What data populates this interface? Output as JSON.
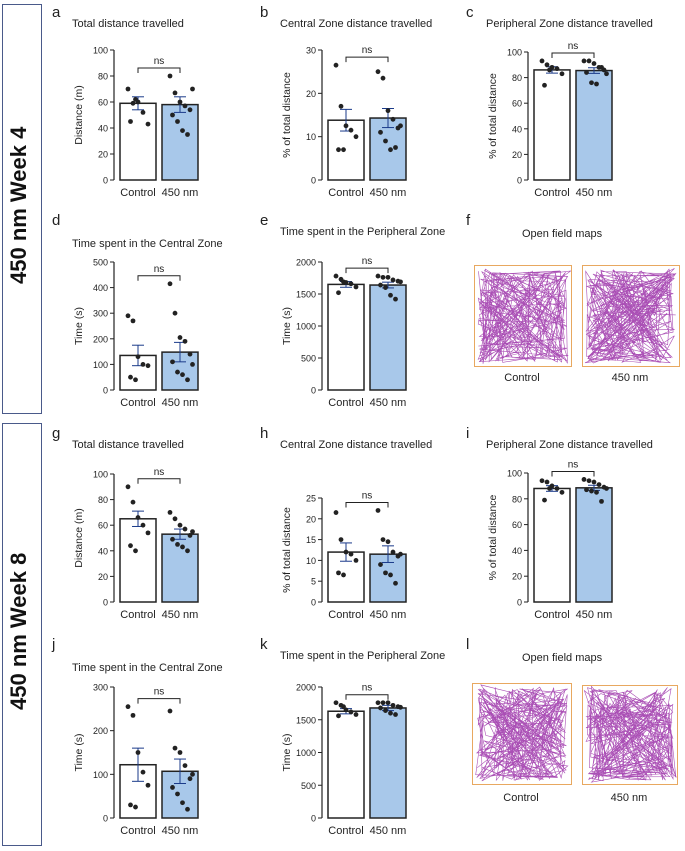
{
  "week_labels": [
    "450 nm Week 4",
    "450 nm Week 8"
  ],
  "colors": {
    "control_fill": "#ffffff",
    "treatment_fill": "#a8c8ea",
    "dot": "#222222",
    "error": "#1a3a8a",
    "track": "#9b30a8",
    "map_border": "#e8a860"
  },
  "maps": [
    {
      "letter": "f",
      "title": "Open field maps",
      "labels": [
        "Control",
        "450 nm"
      ]
    },
    {
      "letter": "l",
      "title": "Open field maps",
      "labels": [
        "Control",
        "450 nm"
      ]
    }
  ],
  "chart_data": [
    {
      "letter": "a",
      "type": "bar",
      "title": "Total distance travelled",
      "ylabel": "Distance (m)",
      "ylim": [
        0,
        100
      ],
      "ticks": [
        0,
        20,
        40,
        60,
        80,
        100
      ],
      "categories": [
        "Control",
        "450 nm"
      ],
      "means": [
        59,
        58
      ],
      "sem": [
        5,
        6
      ],
      "sig": "ns",
      "points": [
        [
          70,
          59,
          60,
          52,
          43,
          45,
          62
        ],
        [
          80,
          67,
          60,
          57,
          54,
          50,
          45,
          38,
          35,
          70
        ]
      ]
    },
    {
      "letter": "b",
      "type": "bar",
      "title": "Central Zone distance travelled",
      "ylabel": "% of total distance",
      "ylim": [
        0,
        30
      ],
      "ticks": [
        0,
        10,
        20,
        30
      ],
      "categories": [
        "Control",
        "450 nm"
      ],
      "means": [
        13.8,
        14.3
      ],
      "sem": [
        2.5,
        2.2
      ],
      "sig": "ns",
      "points": [
        [
          26.5,
          17,
          12.5,
          11.5,
          10,
          7,
          7
        ],
        [
          25,
          23.5,
          16,
          14,
          12,
          11,
          9,
          7,
          7.5,
          12.5
        ]
      ]
    },
    {
      "letter": "c",
      "type": "bar",
      "title": "Peripheral Zone distance travelled",
      "ylabel": "% of total distance",
      "ylim": [
        0,
        100
      ],
      "ticks": [
        0,
        20,
        40,
        60,
        80,
        100
      ],
      "categories": [
        "Control",
        "450 nm"
      ],
      "means": [
        86,
        85.5
      ],
      "sem": [
        2.5,
        2.2
      ],
      "sig": "ns",
      "points": [
        [
          93,
          90,
          88,
          87,
          83,
          74,
          86
        ],
        [
          93,
          93,
          91,
          88,
          86,
          84,
          76,
          75,
          88,
          83
        ]
      ]
    },
    {
      "letter": "d",
      "type": "bar",
      "title": "Time spent in the Central Zone",
      "ylabel": "Time (s)",
      "ylim": [
        0,
        500
      ],
      "ticks": [
        0,
        100,
        200,
        300,
        400,
        500
      ],
      "categories": [
        "Control",
        "450 nm"
      ],
      "means": [
        135,
        148
      ],
      "sem": [
        40,
        38
      ],
      "sig": "ns",
      "points": [
        [
          290,
          270,
          130,
          100,
          95,
          50,
          40
        ],
        [
          415,
          300,
          205,
          190,
          140,
          110,
          70,
          60,
          40,
          100
        ]
      ]
    },
    {
      "letter": "e",
      "type": "bar",
      "title": "Time spent in the Peripheral Zone",
      "ylabel": "Time (s)",
      "ylim": [
        0,
        2000
      ],
      "ticks": [
        0,
        500,
        1000,
        1500,
        2000
      ],
      "categories": [
        "Control",
        "450 nm"
      ],
      "means": [
        1650,
        1640
      ],
      "sem": [
        45,
        45
      ],
      "sig": "ns",
      "points": [
        [
          1780,
          1730,
          1680,
          1660,
          1610,
          1520,
          1690
        ],
        [
          1780,
          1760,
          1760,
          1720,
          1700,
          1640,
          1600,
          1480,
          1420,
          1690
        ]
      ]
    },
    {
      "letter": "g",
      "type": "bar",
      "title": "Total distance travelled",
      "ylabel": "Distance (m)",
      "ylim": [
        0,
        100
      ],
      "ticks": [
        0,
        20,
        40,
        60,
        80,
        100
      ],
      "categories": [
        "Control",
        "450 nm"
      ],
      "means": [
        65,
        53
      ],
      "sem": [
        6,
        4
      ],
      "sig": "ns",
      "points": [
        [
          90,
          78,
          66,
          60,
          54,
          44,
          40
        ],
        [
          70,
          65,
          60,
          57,
          52,
          49,
          45,
          43,
          40,
          55
        ]
      ]
    },
    {
      "letter": "h",
      "type": "bar",
      "title": "Central Zone distance travelled",
      "ylabel": "% of total distance",
      "ylim": [
        0,
        25
      ],
      "ticks": [
        0,
        5,
        10,
        15,
        20,
        25
      ],
      "categories": [
        "Control",
        "450 nm"
      ],
      "means": [
        12,
        11.5
      ],
      "sem": [
        2.2,
        2
      ],
      "sig": "ns",
      "points": [
        [
          21.5,
          15,
          12,
          11.5,
          10,
          7,
          6.5
        ],
        [
          22,
          15,
          14.5,
          12,
          11,
          9,
          7,
          6.5,
          4.5,
          11.5
        ]
      ]
    },
    {
      "letter": "i",
      "type": "bar",
      "title": "Peripheral Zone distance travelled",
      "ylabel": "% of total distance",
      "ylim": [
        0,
        100
      ],
      "ticks": [
        0,
        20,
        40,
        60,
        80,
        100
      ],
      "categories": [
        "Control",
        "450 nm"
      ],
      "means": [
        88,
        88.5
      ],
      "sem": [
        2.2,
        2
      ],
      "sig": "ns",
      "points": [
        [
          94,
          93,
          90,
          88,
          85,
          79,
          88
        ],
        [
          95,
          94,
          93,
          91,
          89,
          87,
          86,
          85,
          78,
          88
        ]
      ]
    },
    {
      "letter": "j",
      "type": "bar",
      "title": "Time spent in the Central Zone",
      "ylabel": "Time (s)",
      "ylim": [
        0,
        300
      ],
      "ticks": [
        0,
        100,
        200,
        300
      ],
      "categories": [
        "Control",
        "450 nm"
      ],
      "means": [
        122,
        107
      ],
      "sem": [
        38,
        28
      ],
      "sig": "ns",
      "points": [
        [
          255,
          235,
          150,
          105,
          75,
          30,
          25
        ],
        [
          245,
          160,
          150,
          120,
          90,
          70,
          55,
          35,
          20,
          100
        ]
      ]
    },
    {
      "letter": "k",
      "type": "bar",
      "title": "Time spent in the Peripheral Zone",
      "ylabel": "Time (s)",
      "ylim": [
        0,
        2000
      ],
      "ticks": [
        0,
        500,
        1000,
        1500,
        2000
      ],
      "categories": [
        "Control",
        "450 nm"
      ],
      "means": [
        1630,
        1680
      ],
      "sem": [
        40,
        40
      ],
      "sig": "ns",
      "points": [
        [
          1760,
          1720,
          1650,
          1620,
          1580,
          1560,
          1700
        ],
        [
          1760,
          1760,
          1760,
          1720,
          1700,
          1680,
          1640,
          1600,
          1580,
          1690
        ]
      ]
    }
  ]
}
